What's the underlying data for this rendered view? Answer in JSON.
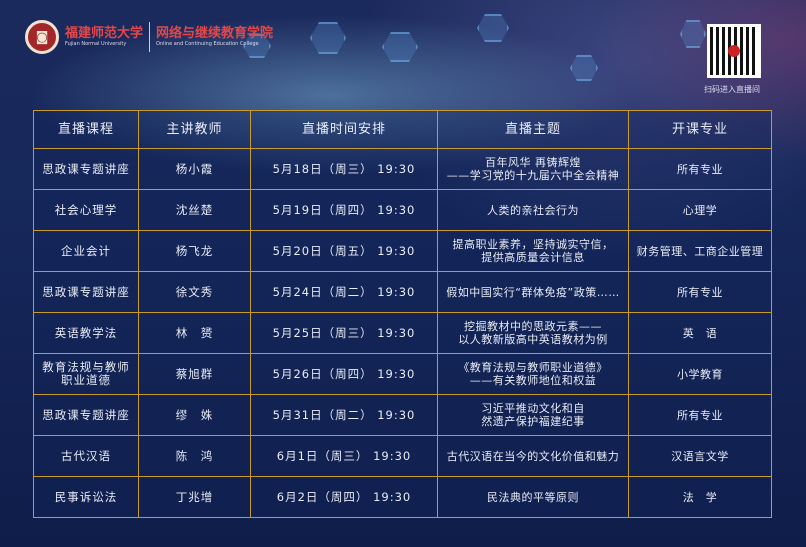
{
  "header": {
    "university_cn": "福建师范大学",
    "university_en": "Fujian Normal University",
    "college_cn": "网络与继续教育学院",
    "college_en": "Online and Continuing Education College",
    "seal_icon": "university-seal",
    "qr_caption": "扫码进入直播间"
  },
  "table": {
    "columns": [
      "直播课程",
      "主讲教师",
      "直播时间安排",
      "直播主题",
      "开课专业"
    ],
    "rows": [
      [
        "思政课专题讲座",
        "杨小霞",
        "5月18日（周三）  19:30",
        "百年风华 再铸辉煌\n——学习党的十九届六中全会精神",
        "所有专业"
      ],
      [
        "社会心理学",
        "沈丝楚",
        "5月19日（周四）  19:30",
        "人类的亲社会行为",
        "心理学"
      ],
      [
        "企业会计",
        "杨飞龙",
        "5月20日（周五）  19:30",
        "提高职业素养，坚持诚实守信，\n提供高质量会计信息",
        "财务管理、工商企业管理"
      ],
      [
        "思政课专题讲座",
        "徐文秀",
        "5月24日（周二）  19:30",
        "假如中国实行“群体免疫”政策……",
        "所有专业"
      ],
      [
        "英语教学法",
        "林　赟",
        "5月25日（周三）  19:30",
        "挖掘教材中的思政元素——\n以人教新版高中英语教材为例",
        "英　语"
      ],
      [
        "教育法规与教师\n职业道德",
        "蔡旭群",
        "5月26日（周四）  19:30",
        "《教育法规与教师职业道德》\n——有关教师地位和权益",
        "小学教育"
      ],
      [
        "思政课专题讲座",
        "缪　姝",
        "5月31日（周二）  19:30",
        "习近平推动文化和自\n然遗产保护福建纪事",
        "所有专业"
      ],
      [
        "古代汉语",
        "陈　鸿",
        "6月1日（周三）  19:30",
        "古代汉语在当今的文化价值和魅力",
        "汉语言文学"
      ],
      [
        "民事诉讼法",
        "丁兆增",
        "6月2日（周四）  19:30",
        "民法典的平等原则",
        "法　学"
      ]
    ]
  },
  "colors": {
    "border": "#c79a2a",
    "background": "#16275a",
    "brand_red": "#e2474a"
  }
}
